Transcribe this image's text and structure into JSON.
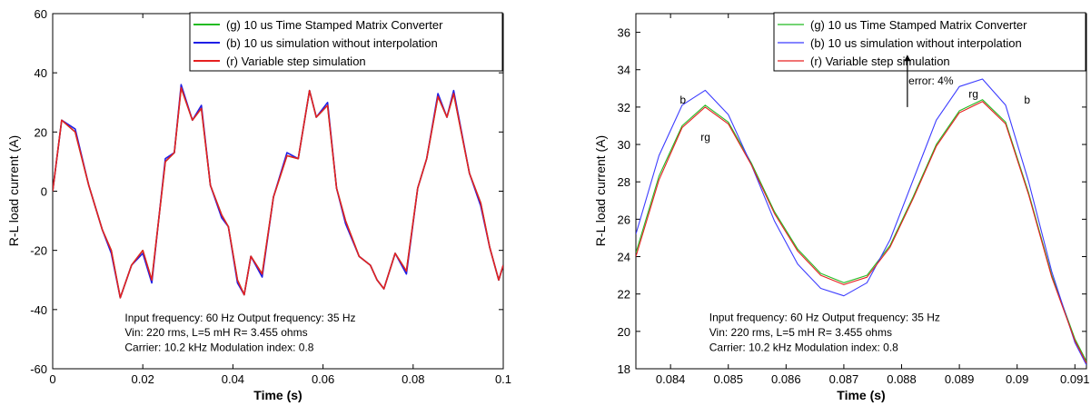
{
  "chart_data": [
    {
      "type": "line",
      "xlabel": "Time (s)",
      "ylabel": "R-L load current (A)",
      "xlim": [
        0,
        0.1
      ],
      "ylim": [
        -60,
        60
      ],
      "xticks": [
        0,
        0.02,
        0.04,
        0.06,
        0.08,
        0.1
      ],
      "xtick_labels": [
        "0",
        "0.02",
        "0.04",
        "0.06",
        "0.08",
        "0.1"
      ],
      "yticks": [
        -60,
        -40,
        -20,
        0,
        20,
        40,
        60
      ],
      "ytick_labels": [
        "-60",
        "-40",
        "-20",
        "0",
        "20",
        "40",
        "60"
      ],
      "legend_position": "top-right",
      "series": [
        {
          "name": "(g)  10 us Time Stamped Matrix Converter",
          "color": "#22bb22",
          "style": "solid",
          "x": [
            0,
            0.002,
            0.005,
            0.008,
            0.011,
            0.013,
            0.015,
            0.0175,
            0.02,
            0.022,
            0.025,
            0.027,
            0.0285,
            0.031,
            0.033,
            0.035,
            0.0375,
            0.039,
            0.041,
            0.0425,
            0.044,
            0.0465,
            0.049,
            0.052,
            0.0545,
            0.057,
            0.0585,
            0.061,
            0.063,
            0.065,
            0.068,
            0.0705,
            0.072,
            0.0735,
            0.076,
            0.0785,
            0.081,
            0.083,
            0.0855,
            0.0875,
            0.089,
            0.0925,
            0.095,
            0.097,
            0.099,
            0.1
          ],
          "y": [
            0,
            24,
            20,
            2,
            -13,
            -20,
            -36,
            -25,
            -20,
            -30,
            10,
            13,
            35,
            24,
            28,
            2,
            -8,
            -12,
            -30,
            -35,
            -22,
            -28,
            -2,
            12,
            11,
            34,
            25,
            29,
            1,
            -10,
            -22,
            -25,
            -30,
            -33,
            -21,
            -27,
            1,
            11,
            32,
            25,
            33,
            6,
            -4,
            -19,
            -30,
            -25
          ]
        },
        {
          "name": "(b)  10 us simulation without interpolation",
          "color": "#1e1ee6",
          "style": "solid",
          "x": [
            0,
            0.002,
            0.005,
            0.008,
            0.011,
            0.013,
            0.015,
            0.0175,
            0.02,
            0.022,
            0.025,
            0.027,
            0.0285,
            0.031,
            0.033,
            0.035,
            0.0375,
            0.039,
            0.041,
            0.0425,
            0.044,
            0.0465,
            0.049,
            0.052,
            0.0545,
            0.057,
            0.0585,
            0.061,
            0.063,
            0.065,
            0.068,
            0.0705,
            0.072,
            0.0735,
            0.076,
            0.0785,
            0.081,
            0.083,
            0.0855,
            0.0875,
            0.089,
            0.0925,
            0.095,
            0.097,
            0.099,
            0.1
          ],
          "y": [
            0,
            24,
            21,
            2,
            -13,
            -21,
            -36,
            -25,
            -21,
            -31,
            11,
            13,
            36,
            24,
            29,
            2,
            -9,
            -12,
            -31,
            -35,
            -22,
            -29,
            -2,
            13,
            11,
            34,
            25,
            30,
            1,
            -11,
            -22,
            -25,
            -30,
            -33,
            -21,
            -28,
            1,
            11,
            33,
            25,
            34,
            6,
            -5,
            -19,
            -30,
            -25
          ]
        },
        {
          "name": "(r)  Variable step simulation",
          "color": "#e62020",
          "style": "solid",
          "x": [
            0,
            0.002,
            0.005,
            0.008,
            0.011,
            0.013,
            0.015,
            0.0175,
            0.02,
            0.022,
            0.025,
            0.027,
            0.0285,
            0.031,
            0.033,
            0.035,
            0.0375,
            0.039,
            0.041,
            0.0425,
            0.044,
            0.0465,
            0.049,
            0.052,
            0.0545,
            0.057,
            0.0585,
            0.061,
            0.063,
            0.065,
            0.068,
            0.0705,
            0.072,
            0.0735,
            0.076,
            0.0785,
            0.081,
            0.083,
            0.0855,
            0.0875,
            0.089,
            0.0925,
            0.095,
            0.097,
            0.099,
            0.1
          ],
          "y": [
            0,
            24,
            20,
            2,
            -13,
            -20,
            -36,
            -25,
            -20,
            -30,
            10,
            13,
            35,
            24,
            28,
            2,
            -8,
            -12,
            -30,
            -35,
            -22,
            -28,
            -2,
            12,
            11,
            34,
            25,
            29,
            1,
            -10,
            -22,
            -25,
            -30,
            -33,
            -21,
            -27,
            1,
            11,
            32,
            25,
            33,
            6,
            -4,
            -19,
            -30,
            -25
          ]
        }
      ],
      "annotations": [
        {
          "text": "Input frequency: 60 Hz  Output frequency: 35 Hz",
          "x": 0.016,
          "y": -44
        },
        {
          "text": "Vin: 220 rms,  L=5 mH R= 3.455 ohms",
          "x": 0.016,
          "y": -49
        },
        {
          "text": "Carrier: 10.2 kHz Modulation index: 0.8",
          "x": 0.016,
          "y": -54
        }
      ]
    },
    {
      "type": "line",
      "xlabel": "Time (s)",
      "ylabel": "R-L load current (A)",
      "xlim": [
        0.0834,
        0.0912
      ],
      "ylim": [
        18,
        37
      ],
      "xticks": [
        0.084,
        0.085,
        0.086,
        0.087,
        0.088,
        0.089,
        0.09,
        0.091
      ],
      "xtick_labels": [
        "0.084",
        "0.085",
        "0.086",
        "0.087",
        "0.088",
        "0.089",
        "0.09",
        "0.091"
      ],
      "yticks": [
        18,
        20,
        22,
        24,
        26,
        28,
        30,
        32,
        34,
        36
      ],
      "ytick_labels": [
        "18",
        "20",
        "22",
        "24",
        "26",
        "28",
        "30",
        "32",
        "34",
        "36"
      ],
      "legend_position": "top-right",
      "series": [
        {
          "name": "(g)  10 us Time Stamped Matrix Converter",
          "color": "#22bb22",
          "style": "solid",
          "x": [
            0.0834,
            0.0838,
            0.0842,
            0.0846,
            0.085,
            0.0854,
            0.0858,
            0.0862,
            0.0866,
            0.087,
            0.0874,
            0.0878,
            0.0882,
            0.0886,
            0.089,
            0.0894,
            0.0898,
            0.0902,
            0.0906,
            0.091,
            0.0912
          ],
          "y": [
            24.2,
            28.3,
            31.0,
            32.1,
            31.2,
            29.0,
            26.4,
            24.4,
            23.1,
            22.6,
            23.0,
            24.6,
            27.2,
            30.0,
            31.8,
            32.4,
            31.2,
            27.4,
            23.0,
            19.6,
            18.4
          ]
        },
        {
          "name": "(b)  10 us simulation without interpolation",
          "color": "#3c3cff",
          "style": "solid",
          "x": [
            0.0834,
            0.0838,
            0.0842,
            0.0846,
            0.085,
            0.0854,
            0.0858,
            0.0862,
            0.0866,
            0.087,
            0.0874,
            0.0878,
            0.0882,
            0.0886,
            0.089,
            0.0894,
            0.0898,
            0.0902,
            0.0906,
            0.091,
            0.0912
          ],
          "y": [
            25.2,
            29.4,
            32.1,
            32.9,
            31.6,
            28.9,
            25.9,
            23.6,
            22.3,
            21.9,
            22.6,
            24.9,
            28.1,
            31.3,
            33.1,
            33.5,
            32.1,
            28.0,
            23.2,
            19.4,
            18.2
          ]
        },
        {
          "name": "(r)  Variable step simulation",
          "color": "#e62020",
          "style": "solid",
          "x": [
            0.0834,
            0.0838,
            0.0842,
            0.0846,
            0.085,
            0.0854,
            0.0858,
            0.0862,
            0.0866,
            0.087,
            0.0874,
            0.0878,
            0.0882,
            0.0886,
            0.089,
            0.0894,
            0.0898,
            0.0902,
            0.0906,
            0.091,
            0.0912
          ],
          "y": [
            24.0,
            28.1,
            30.9,
            32.0,
            31.1,
            28.9,
            26.3,
            24.3,
            23.0,
            22.5,
            22.9,
            24.5,
            27.1,
            29.9,
            31.7,
            32.3,
            31.1,
            27.3,
            22.9,
            19.5,
            18.3
          ]
        }
      ],
      "annotations": [
        {
          "text": "b",
          "x": 0.08416,
          "y": 32.2
        },
        {
          "text": "rg",
          "x": 0.08452,
          "y": 30.2
        },
        {
          "text": "error: 4%",
          "x": 0.08812,
          "y": 33.2
        },
        {
          "text": "rg",
          "x": 0.08916,
          "y": 32.5
        },
        {
          "text": "b",
          "x": 0.09012,
          "y": 32.2
        },
        {
          "text": "Input frequency: 60 Hz  Output frequency: 35 Hz",
          "x": 0.08467,
          "y": 20.55
        },
        {
          "text": "Vin: 220 rms,  L=5 mH R= 3.455 ohms",
          "x": 0.08467,
          "y": 19.75
        },
        {
          "text": "Carrier: 10.2 kHz Modulation index: 0.8",
          "x": 0.08467,
          "y": 18.95
        }
      ],
      "arrow": {
        "x": 0.0881,
        "y_from": 32.0,
        "y_to": 34.8
      }
    }
  ]
}
